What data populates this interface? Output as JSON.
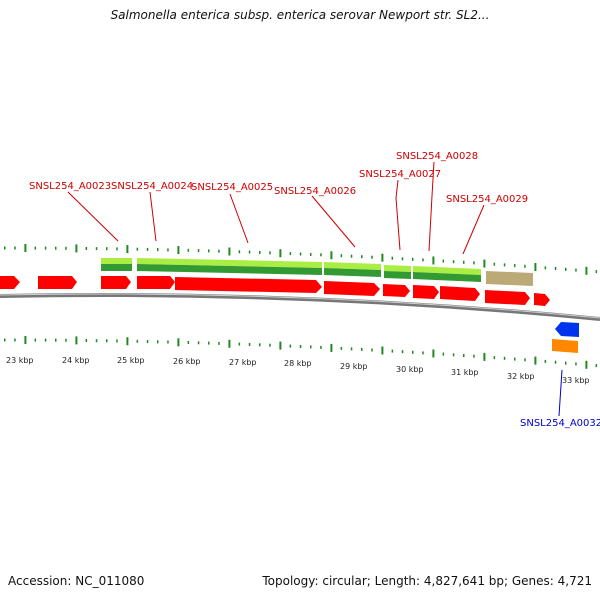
{
  "title": "Salmonella enterica subsp. enterica serovar Newport str. SL2...",
  "accession": "Accession: NC_011080",
  "topology": "Topology: circular; Length: 4,827,641 bp; Genes: 4,721",
  "colors": {
    "gene": "#ff0000",
    "label_red": "#cc0000",
    "label_blue": "#0000cc",
    "feature_light_green": "#aaee44",
    "feature_dark_green": "#339933",
    "feature_khaki": "#bbaa77",
    "feature_blue": "#0033ee",
    "feature_orange": "#ff8800",
    "backbone": "#888888",
    "tick": "#228822"
  },
  "gene_labels": [
    {
      "text": "SNSL254_A0023"
    },
    {
      "text": "SNSL254_A0024"
    },
    {
      "text": "SNSL254_A0025"
    },
    {
      "text": "SNSL254_A0026"
    },
    {
      "text": "SNSL254_A0027"
    },
    {
      "text": "SNSL254_A0028"
    },
    {
      "text": "SNSL254_A0029"
    },
    {
      "text": "SNSL254_A0032"
    }
  ],
  "scale_ticks": [
    "23 kbp",
    "24 kbp",
    "25 kbp",
    "26 kbp",
    "27 kbp",
    "28 kbp",
    "29 kbp",
    "30 kbp",
    "31 kbp",
    "32 kbp",
    "33 kbp"
  ]
}
